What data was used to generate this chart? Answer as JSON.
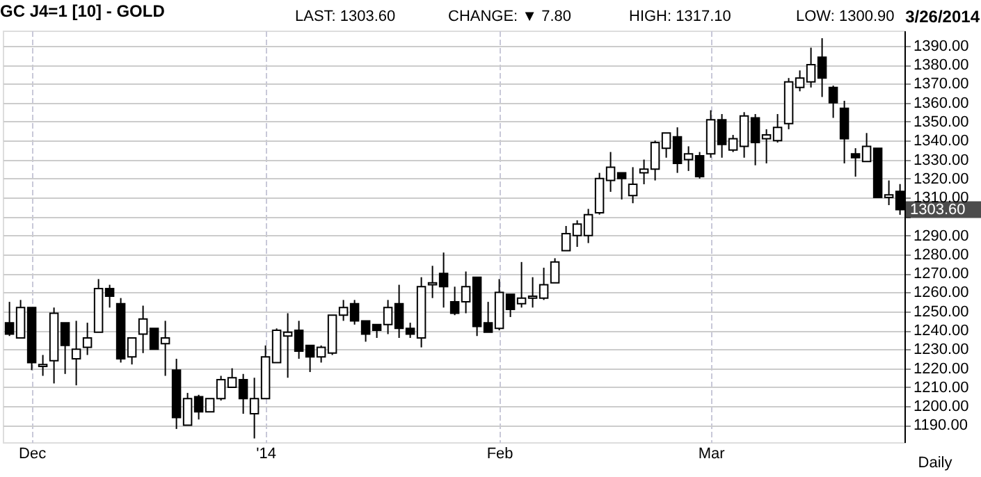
{
  "chart_data": {
    "type": "candlestick",
    "title": "GC J4=1 [10] - GOLD",
    "annotations": [
      "LAST: 1303.60",
      "CHANGE: ▼ 7.80",
      "HIGH: 1317.10",
      "LOW: 1300.90",
      "3/26/2014",
      "1303.60",
      "Daily"
    ],
    "categories": [
      null,
      null,
      "Dec",
      null,
      null,
      null,
      null,
      null,
      null,
      null,
      null,
      null,
      null,
      null,
      null,
      null,
      null,
      null,
      null,
      null,
      null,
      null,
      null,
      "'14",
      null,
      null,
      null,
      null,
      null,
      null,
      null,
      null,
      null,
      null,
      null,
      null,
      null,
      null,
      null,
      null,
      null,
      null,
      null,
      null,
      "Feb",
      null,
      null,
      null,
      null,
      null,
      null,
      null,
      null,
      null,
      null,
      null,
      null,
      null,
      null,
      null,
      null,
      null,
      null,
      "Mar",
      null,
      null,
      null,
      null,
      null,
      null,
      null,
      null,
      null,
      null,
      null,
      null,
      null,
      null,
      null,
      null,
      null
    ],
    "color": "#000000",
    "ohlc": [
      [
        1244,
        1255,
        1237,
        1238
      ],
      [
        1236,
        1256,
        1236,
        1252
      ],
      [
        1252,
        1252,
        1219,
        1223
      ],
      [
        1221,
        1227,
        1216,
        1222
      ],
      [
        1224,
        1252,
        1212,
        1249
      ],
      [
        1244,
        1244,
        1217,
        1232
      ],
      [
        1225,
        1245,
        1211,
        1230
      ],
      [
        1231,
        1244,
        1227,
        1236
      ],
      [
        1239,
        1267,
        1239,
        1262
      ],
      [
        1262,
        1264,
        1252,
        1258
      ],
      [
        1254,
        1257,
        1223,
        1225
      ],
      [
        1226,
        1236,
        1222,
        1236
      ],
      [
        1238,
        1253,
        1228,
        1246
      ],
      [
        1241,
        1241,
        1230,
        1230
      ],
      [
        1233,
        1245,
        1216,
        1236
      ],
      [
        1219,
        1225,
        1188,
        1194
      ],
      [
        1190,
        1207,
        1190,
        1204
      ],
      [
        1205,
        1206,
        1193,
        1197
      ],
      [
        1197,
        1204,
        1197,
        1204
      ],
      [
        1204,
        1216,
        1203,
        1214
      ],
      [
        1210,
        1220,
        1210,
        1215
      ],
      [
        1214,
        1217,
        1196,
        1204
      ],
      [
        1196,
        1215,
        1183,
        1204
      ],
      [
        1204,
        1232,
        1204,
        1226
      ],
      [
        1223,
        1241,
        1223,
        1240
      ],
      [
        1237,
        1249,
        1215,
        1239
      ],
      [
        1240,
        1245,
        1225,
        1229
      ],
      [
        1232,
        1232,
        1218,
        1226
      ],
      [
        1226,
        1232,
        1223,
        1231
      ],
      [
        1228,
        1248,
        1227,
        1248
      ],
      [
        1248,
        1256,
        1245,
        1252
      ],
      [
        1254,
        1256,
        1243,
        1245
      ],
      [
        1245,
        1245,
        1234,
        1238
      ],
      [
        1243,
        1243,
        1236,
        1240
      ],
      [
        1243,
        1256,
        1238,
        1252
      ],
      [
        1254,
        1264,
        1236,
        1241
      ],
      [
        1241,
        1244,
        1236,
        1238
      ],
      [
        1236,
        1268,
        1231,
        1263
      ],
      [
        1264,
        1274,
        1257,
        1265
      ],
      [
        1270,
        1281,
        1252,
        1263
      ],
      [
        1255,
        1263,
        1248,
        1249
      ],
      [
        1255,
        1271,
        1249,
        1263
      ],
      [
        1268,
        1268,
        1237,
        1242
      ],
      [
        1244,
        1255,
        1239,
        1239
      ],
      [
        1241,
        1267,
        1240,
        1260
      ],
      [
        1259,
        1259,
        1247,
        1251
      ],
      [
        1254,
        1276,
        1252,
        1257
      ],
      [
        1257,
        1268,
        1252,
        1258
      ],
      [
        1257,
        1273,
        1256,
        1264
      ],
      [
        1265,
        1278,
        1265,
        1276
      ],
      [
        1282,
        1295,
        1282,
        1291
      ],
      [
        1290,
        1298,
        1284,
        1296
      ],
      [
        1290,
        1304,
        1286,
        1301
      ],
      [
        1302,
        1323,
        1301,
        1320
      ],
      [
        1319,
        1334,
        1313,
        1326
      ],
      [
        1323,
        1323,
        1309,
        1320
      ],
      [
        1311,
        1326,
        1307,
        1317
      ],
      [
        1323,
        1330,
        1317,
        1325
      ],
      [
        1325,
        1340,
        1319,
        1339
      ],
      [
        1336,
        1344,
        1331,
        1344
      ],
      [
        1342,
        1347,
        1323,
        1328
      ],
      [
        1330,
        1337,
        1324,
        1333
      ],
      [
        1332,
        1334,
        1320,
        1321
      ],
      [
        1333,
        1356,
        1331,
        1351
      ],
      [
        1351,
        1354,
        1331,
        1338
      ],
      [
        1335,
        1343,
        1334,
        1341
      ],
      [
        1337,
        1355,
        1331,
        1353
      ],
      [
        1352,
        1354,
        1327,
        1339
      ],
      [
        1341,
        1346,
        1328,
        1343
      ],
      [
        1340,
        1354,
        1339,
        1347
      ],
      [
        1349,
        1373,
        1346,
        1371
      ],
      [
        1368,
        1377,
        1366,
        1373
      ],
      [
        1371,
        1389,
        1368,
        1380
      ],
      [
        1384,
        1394,
        1363,
        1373
      ],
      [
        1368,
        1369,
        1352,
        1360
      ],
      [
        1357,
        1361,
        1328,
        1341
      ],
      [
        1333,
        1336,
        1321,
        1331
      ],
      [
        1329,
        1344,
        1329,
        1337
      ],
      [
        1336,
        1336,
        1310,
        1310
      ],
      [
        1310,
        1319,
        1306,
        1311.4
      ],
      [
        1313.2,
        1317.1,
        1300.9,
        1303.6
      ]
    ],
    "ylim": [
      1181,
      1398
    ],
    "yticks": [
      {
        "value": 1190,
        "label": "1190.00"
      },
      {
        "value": 1200,
        "label": "1200.00"
      },
      {
        "value": 1210,
        "label": "1210.00"
      },
      {
        "value": 1220,
        "label": "1220.00"
      },
      {
        "value": 1230,
        "label": "1230.00"
      },
      {
        "value": 1240,
        "label": "1240.00"
      },
      {
        "value": 1250,
        "label": "1250.00"
      },
      {
        "value": 1260,
        "label": "1260.00"
      },
      {
        "value": 1270,
        "label": "1270.00"
      },
      {
        "value": 1280,
        "label": "1280.00"
      },
      {
        "value": 1290,
        "label": "1290.00"
      },
      {
        "value": 1300,
        "label": null
      },
      {
        "value": 1310,
        "label": "1310.00"
      },
      {
        "value": 1320,
        "label": "1320.00"
      },
      {
        "value": 1330,
        "label": "1330.00"
      },
      {
        "value": 1340,
        "label": "1340.00"
      },
      {
        "value": 1350,
        "label": "1350.00"
      },
      {
        "value": 1360,
        "label": "1360.00"
      },
      {
        "value": 1370,
        "label": "1370.00"
      },
      {
        "value": 1380,
        "label": "1380.00"
      },
      {
        "value": 1390,
        "label": "1390.00"
      }
    ],
    "grid": true
  }
}
